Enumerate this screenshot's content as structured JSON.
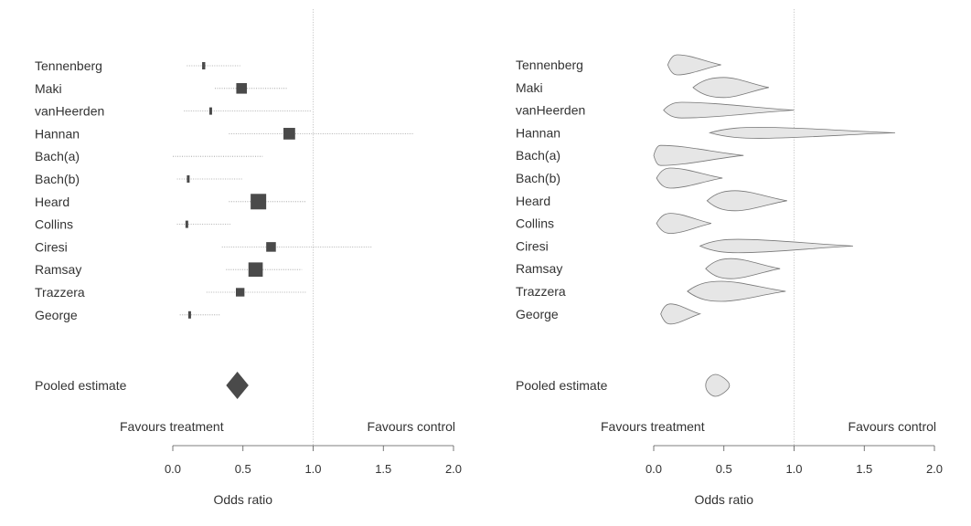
{
  "chart_data": [
    {
      "type": "forest",
      "panel": "left",
      "marker_style": "box",
      "xlabel": "Odds ratio",
      "xlim": [
        0,
        2
      ],
      "xticks": [
        "0.0",
        "0.5",
        "1.0",
        "1.5",
        "2.0"
      ],
      "reference_line": 1.0,
      "annotations": {
        "left": "Favours treatment",
        "right": "Favours control"
      },
      "studies": [
        {
          "name": "Tennenberg",
          "or": 0.22,
          "ci": [
            0.1,
            0.48
          ],
          "weight": 0.2
        },
        {
          "name": "Maki",
          "or": 0.49,
          "ci": [
            0.3,
            0.82
          ],
          "weight": 0.68
        },
        {
          "name": "vanHeerden",
          "or": 0.27,
          "ci": [
            0.08,
            0.99
          ],
          "weight": 0.15
        },
        {
          "name": "Hannan",
          "or": 0.83,
          "ci": [
            0.4,
            1.72
          ],
          "weight": 0.75
        },
        {
          "name": "Bach(a)",
          "or": 0.0,
          "ci": [
            0.0,
            0.64
          ],
          "weight": 0.0
        },
        {
          "name": "Bach(b)",
          "or": 0.11,
          "ci": [
            0.03,
            0.5
          ],
          "weight": 0.12
        },
        {
          "name": "Heard",
          "or": 0.61,
          "ci": [
            0.4,
            0.95
          ],
          "weight": 1.0
        },
        {
          "name": "Collins",
          "or": 0.1,
          "ci": [
            0.03,
            0.41
          ],
          "weight": 0.12
        },
        {
          "name": "Ciresi",
          "or": 0.7,
          "ci": [
            0.35,
            1.42
          ],
          "weight": 0.62
        },
        {
          "name": "Ramsay",
          "or": 0.59,
          "ci": [
            0.38,
            0.92
          ],
          "weight": 0.92
        },
        {
          "name": "Trazzera",
          "or": 0.48,
          "ci": [
            0.24,
            0.95
          ],
          "weight": 0.55
        },
        {
          "name": "George",
          "or": 0.12,
          "ci": [
            0.05,
            0.34
          ],
          "weight": 0.12
        }
      ],
      "pooled": {
        "label": "Pooled estimate",
        "or": 0.46,
        "ci": [
          0.38,
          0.54
        ]
      }
    },
    {
      "type": "forest",
      "panel": "right",
      "marker_style": "violin",
      "xlabel": "Odds ratio",
      "xlim": [
        0,
        2
      ],
      "xticks": [
        "0.0",
        "0.5",
        "1.0",
        "1.5",
        "2.0"
      ],
      "reference_line": 1.0,
      "annotations": {
        "left": "Favours treatment",
        "right": "Favours control"
      },
      "studies": [
        {
          "name": "Tennenberg",
          "or": 0.17,
          "ci": [
            0.1,
            0.48
          ]
        },
        {
          "name": "Maki",
          "or": 0.5,
          "ci": [
            0.28,
            0.82
          ]
        },
        {
          "name": "vanHeerden",
          "or": 0.2,
          "ci": [
            0.07,
            1.0
          ]
        },
        {
          "name": "Hannan",
          "or": 0.75,
          "ci": [
            0.4,
            1.72
          ]
        },
        {
          "name": "Bach(a)",
          "or": 0.05,
          "ci": [
            0.0,
            0.64
          ]
        },
        {
          "name": "Bach(b)",
          "or": 0.12,
          "ci": [
            0.02,
            0.49
          ]
        },
        {
          "name": "Heard",
          "or": 0.58,
          "ci": [
            0.38,
            0.95
          ]
        },
        {
          "name": "Collins",
          "or": 0.12,
          "ci": [
            0.02,
            0.41
          ]
        },
        {
          "name": "Ciresi",
          "or": 0.6,
          "ci": [
            0.33,
            1.42
          ]
        },
        {
          "name": "Ramsay",
          "or": 0.55,
          "ci": [
            0.37,
            0.9
          ]
        },
        {
          "name": "Trazzera",
          "or": 0.48,
          "ci": [
            0.24,
            0.94
          ]
        },
        {
          "name": "George",
          "or": 0.12,
          "ci": [
            0.05,
            0.33
          ]
        }
      ],
      "pooled": {
        "label": "Pooled estimate",
        "or": 0.44,
        "ci": [
          0.37,
          0.54
        ]
      }
    }
  ]
}
